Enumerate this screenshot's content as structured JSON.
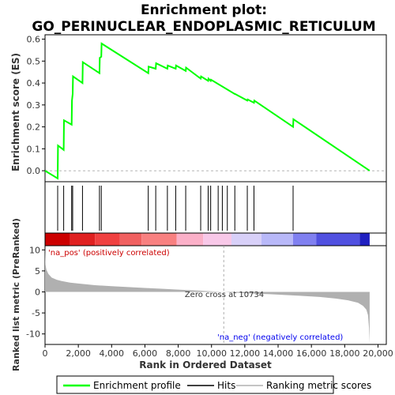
{
  "chart_data": {
    "type": "line",
    "title_line1": "Enrichment plot:",
    "title_line2": "GO_PERINUCLEAR_ENDOPLASMIC_RETICULUM",
    "top_panel": {
      "ylabel": "Enrichment score (ES)",
      "ylim": [
        -0.05,
        0.62
      ],
      "yticks": [
        "0.0",
        "0.1",
        "0.2",
        "0.3",
        "0.4",
        "0.5",
        "0.6"
      ],
      "ytick_values": [
        0.0,
        0.1,
        0.2,
        0.3,
        0.4,
        0.5,
        0.6
      ],
      "series": [
        {
          "name": "Enrichment profile",
          "color": "#00ff00",
          "x": [
            0,
            760,
            780,
            1120,
            1140,
            1600,
            1620,
            1660,
            1680,
            2250,
            2270,
            3270,
            3290,
            3380,
            3400,
            6200,
            6220,
            6650,
            6670,
            7350,
            7370,
            7850,
            7870,
            8450,
            8470,
            9350,
            9370,
            9800,
            9820,
            9950,
            9970,
            11400,
            11420,
            12150,
            12170,
            12550,
            12570,
            14900,
            14920,
            19500
          ],
          "y": [
            0.0,
            -0.035,
            0.115,
            0.095,
            0.23,
            0.21,
            0.32,
            0.35,
            0.43,
            0.4,
            0.495,
            0.445,
            0.515,
            0.52,
            0.58,
            0.445,
            0.475,
            0.465,
            0.49,
            0.465,
            0.48,
            0.465,
            0.48,
            0.455,
            0.47,
            0.42,
            0.43,
            0.41,
            0.42,
            0.41,
            0.415,
            0.35,
            0.35,
            0.32,
            0.325,
            0.31,
            0.32,
            0.2,
            0.235,
            0.0
          ]
        }
      ],
      "hits_label": "Hits",
      "hits": [
        760,
        1120,
        1600,
        1660,
        2250,
        3270,
        3380,
        6200,
        6650,
        7350,
        7850,
        8450,
        9350,
        9800,
        9950,
        10400,
        10650,
        10950,
        11400,
        12150,
        12550,
        14900
      ]
    },
    "middle_panel": {
      "heat_colors": [
        "#cc0000",
        "#e02020",
        "#f04040",
        "#f06060",
        "#f88080",
        "#fbb0c8",
        "#f8c8e8",
        "#d8d0f8",
        "#b8b8f8",
        "#8080f0",
        "#5050e0",
        "#2020c0"
      ],
      "heat_stops": [
        0,
        1500,
        3000,
        4500,
        5800,
        7900,
        9500,
        11200,
        13000,
        14900,
        16300,
        18900,
        19500
      ]
    },
    "bottom_panel": {
      "ylabel": "Ranked list metric (PreRanked)",
      "xlabel": "Rank in Ordered Dataset",
      "ylim": [
        -12.5,
        11
      ],
      "yticks": [
        "10",
        "5",
        "0",
        "-5",
        "-10"
      ],
      "ytick_values": [
        10,
        5,
        0,
        -5,
        -10
      ],
      "xlim": [
        0,
        20500
      ],
      "xticks": [
        "0",
        "2,000",
        "4,000",
        "6,000",
        "8,000",
        "10,000",
        "12,000",
        "14,000",
        "16,000",
        "18,000",
        "20,000"
      ],
      "xtick_values": [
        0,
        2000,
        4000,
        6000,
        8000,
        10000,
        12000,
        14000,
        16000,
        18000,
        20000
      ],
      "series": [
        {
          "name": "Ranking metric scores",
          "color": "#b0b0b0",
          "x": [
            0,
            30,
            80,
            200,
            400,
            700,
            1000,
            1500,
            2000,
            3000,
            4000,
            5000,
            6000,
            7000,
            8000,
            9000,
            10000,
            10734,
            11500,
            12500,
            13500,
            14500,
            15500,
            16500,
            17500,
            18200,
            18800,
            19100,
            19300,
            19400,
            19460,
            19500
          ],
          "y": [
            11,
            6.5,
            5.3,
            4.3,
            3.4,
            2.9,
            2.6,
            2.2,
            2.0,
            1.6,
            1.35,
            1.15,
            0.95,
            0.75,
            0.55,
            0.35,
            0.15,
            0.0,
            -0.2,
            -0.4,
            -0.55,
            -0.75,
            -0.95,
            -1.2,
            -1.6,
            -2.0,
            -2.6,
            -3.3,
            -4.2,
            -5.5,
            -8.5,
            -12.2
          ]
        }
      ],
      "zero_cross_label": "Zero cross at 10734",
      "zero_cross": 10734,
      "na_pos_label": "'na_pos' (positively correlated)",
      "na_neg_label": "'na_neg' (negatively correlated)",
      "pos_color": "#cc0000",
      "neg_color": "#0000ee"
    },
    "legend": {
      "items": [
        {
          "label": "Enrichment profile",
          "color": "#00ff00"
        },
        {
          "label": "Hits",
          "color": "#000000"
        },
        {
          "label": "Ranking metric scores",
          "color": "#b0b0b0"
        }
      ],
      "placement": "bottom"
    },
    "grid": false
  }
}
